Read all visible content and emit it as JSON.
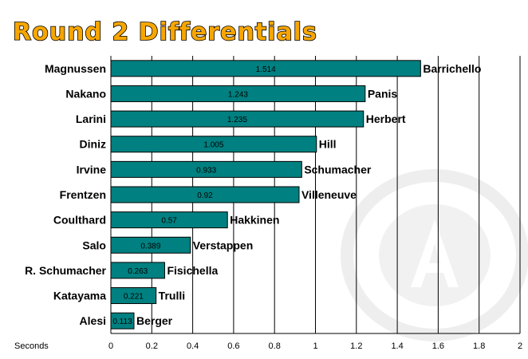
{
  "chart_data": {
    "type": "bar",
    "orientation": "horizontal",
    "title": "Round 2 Differentials",
    "xlabel": "Seconds",
    "ylabel": "",
    "xlim": [
      0,
      2
    ],
    "xticks": [
      "0",
      "0.2",
      "0.4",
      "0.6",
      "0.8",
      "1",
      "1.2",
      "1.4",
      "1.6",
      "1.8",
      "2"
    ],
    "grid": true,
    "bar_color": "#008080",
    "categories": [
      "Magnussen",
      "Nakano",
      "Larini",
      "Diniz",
      "Irvine",
      "Frentzen",
      "Coulthard",
      "Salo",
      "R. Schumacher",
      "Katayama",
      "Alesi"
    ],
    "paired_with": [
      "Barrichello",
      "Panis",
      "Herbert",
      "Hill",
      "Schumacher",
      "Villeneuve",
      "Hakkinen",
      "Verstappen",
      "Fisichella",
      "Trulli",
      "Berger"
    ],
    "values": [
      1.514,
      1.243,
      1.235,
      1.005,
      0.933,
      0.92,
      0.57,
      0.389,
      0.263,
      0.221,
      0.113
    ],
    "value_labels": [
      "1.514",
      "1.243",
      "1.235",
      "1.005",
      "0.933",
      "0.92",
      "0.57",
      "0.389",
      "0.263",
      "0.221",
      "0.113"
    ]
  }
}
